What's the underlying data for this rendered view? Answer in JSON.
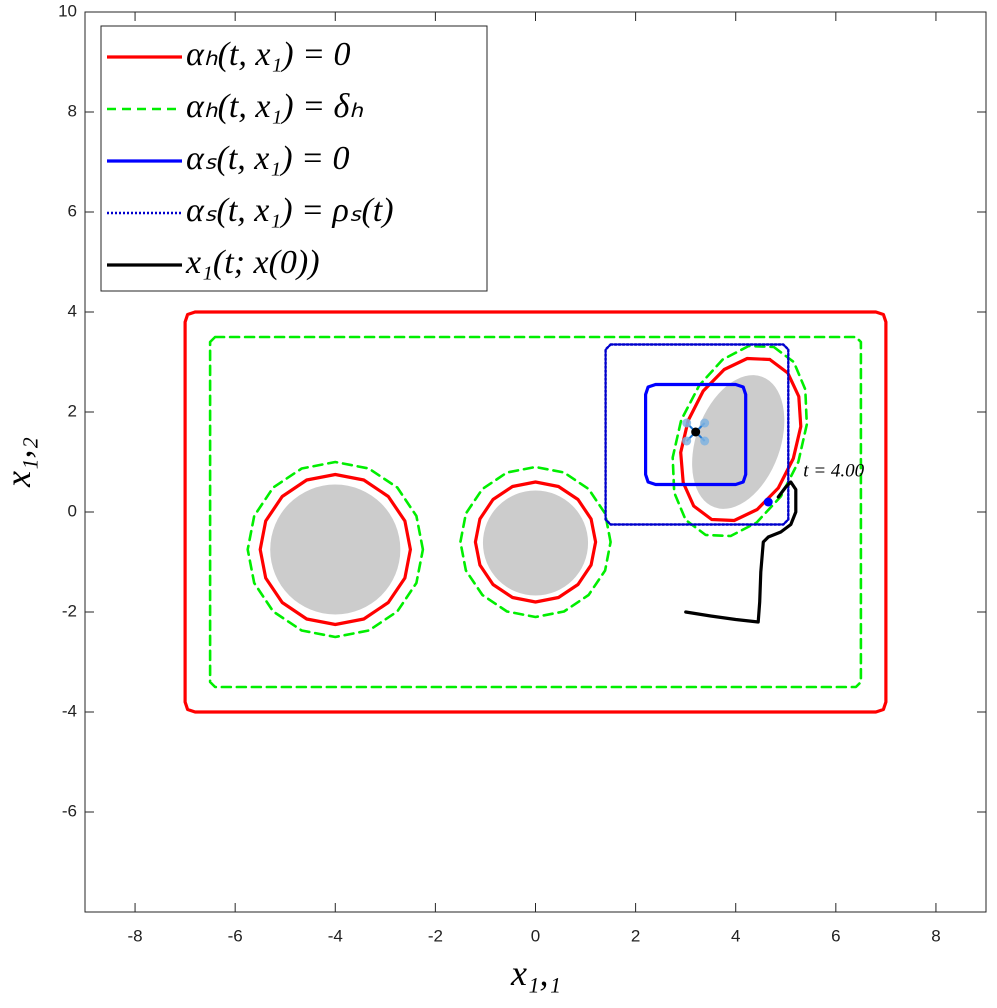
{
  "chart_data": {
    "type": "line",
    "xlabel": "x₁,₁",
    "ylabel": "x₁,₂",
    "xlim": [
      -9,
      9
    ],
    "ylim": [
      -8,
      10
    ],
    "xticks": [
      -8,
      -6,
      -4,
      -2,
      0,
      2,
      4,
      6,
      8
    ],
    "yticks": [
      -6,
      -4,
      -2,
      0,
      2,
      4,
      6,
      8,
      10
    ],
    "legend": "upper left",
    "series": [
      {
        "name": "αₕ(t, x₁) = 0",
        "color": "#ff0000",
        "style": "solid",
        "x": [
          -6.8,
          6.8,
          6.95,
          7,
          7,
          6.95,
          6.8,
          -6.8,
          -6.95,
          -7,
          -7,
          -6.95,
          -6.8,
          null,
          -2.5,
          -2.61,
          -2.94,
          -3.43,
          -4,
          -4.57,
          -5.06,
          -5.39,
          -5.5,
          -5.39,
          -5.06,
          -4.57,
          -4,
          -3.43,
          -2.94,
          -2.61,
          -2.5,
          null,
          1.2,
          1.11,
          0.85,
          0.46,
          0,
          -0.46,
          -0.85,
          -1.11,
          -1.2,
          -1.11,
          -0.85,
          -0.46,
          0,
          0.46,
          0.85,
          1.11,
          1.2,
          null,
          4.68,
          5.04,
          5.26,
          5.3,
          5.15,
          4.85,
          4.43,
          3.97,
          3.52,
          3.16,
          2.95,
          2.9,
          3.05,
          3.35,
          3.77,
          4.23,
          4.68
        ],
        "y": [
          4,
          4,
          3.95,
          3.8,
          -3.8,
          -3.95,
          -4,
          -4,
          -3.95,
          -3.8,
          3.8,
          3.95,
          4,
          null,
          -0.75,
          -0.18,
          0.31,
          0.64,
          0.75,
          0.64,
          0.31,
          -0.18,
          -0.75,
          -1.32,
          -1.81,
          -2.14,
          -2.25,
          -2.14,
          -1.81,
          -1.32,
          -0.75,
          null,
          -0.6,
          -0.14,
          0.25,
          0.51,
          0.6,
          0.51,
          0.25,
          -0.14,
          -0.6,
          -1.06,
          -1.45,
          -1.71,
          -1.8,
          -1.71,
          -1.45,
          -1.06,
          -0.6,
          null,
          3.05,
          2.78,
          2.31,
          1.71,
          1.07,
          0.48,
          0.05,
          -0.17,
          -0.15,
          0.12,
          0.59,
          1.19,
          1.83,
          2.42,
          2.85,
          3.07,
          3.05
        ]
      },
      {
        "name": "αₕ(t, x₁) = δₕ",
        "color": "#00ee00",
        "style": "dashed",
        "x": [
          -6.4,
          6.4,
          6.5,
          6.5,
          6.4,
          -6.4,
          -6.5,
          -6.5,
          -6.4,
          null,
          -2.25,
          -2.38,
          -2.76,
          -3.33,
          -4,
          -4.67,
          -5.24,
          -5.62,
          -5.75,
          -5.62,
          -5.24,
          -4.67,
          -4,
          -3.33,
          -2.76,
          -2.38,
          -2.25,
          null,
          1.5,
          1.39,
          1.06,
          0.57,
          0,
          -0.57,
          -1.06,
          -1.39,
          -1.5,
          -1.39,
          -1.06,
          -0.57,
          0,
          0.57,
          1.06,
          1.39,
          1.5,
          null,
          4.76,
          5.16,
          5.39,
          5.42,
          5.25,
          4.9,
          4.42,
          3.9,
          3.4,
          3.0,
          2.77,
          2.74,
          2.91,
          3.27,
          3.74,
          4.26,
          4.76
        ],
        "y": [
          3.5,
          3.5,
          3.4,
          -3.4,
          -3.5,
          -3.5,
          -3.4,
          3.4,
          3.5,
          null,
          -0.75,
          -0.08,
          0.49,
          0.87,
          1,
          0.87,
          0.49,
          -0.08,
          -0.75,
          -1.42,
          -1.99,
          -2.37,
          -2.5,
          -2.37,
          -1.99,
          -1.42,
          -0.75,
          null,
          -0.6,
          -0.03,
          0.46,
          0.79,
          0.9,
          0.79,
          0.46,
          -0.03,
          -0.6,
          -1.17,
          -1.66,
          -1.99,
          -2.1,
          -1.99,
          -1.66,
          -1.17,
          -0.6,
          null,
          3.3,
          3.0,
          2.45,
          1.75,
          1.0,
          0.31,
          -0.21,
          -0.48,
          -0.46,
          -0.16,
          0.39,
          1.09,
          1.84,
          2.53,
          3.05,
          3.32,
          3.3
        ]
      },
      {
        "name": "αₛ(t, x₁) = 0",
        "color": "#0000ff",
        "style": "solid",
        "x": [
          2.4,
          4.0,
          4.15,
          4.2,
          4.2,
          4.15,
          4.0,
          2.4,
          2.25,
          2.2,
          2.2,
          2.25,
          2.4
        ],
        "y": [
          2.55,
          2.55,
          2.5,
          2.35,
          0.75,
          0.6,
          0.55,
          0.55,
          0.6,
          0.75,
          2.35,
          2.5,
          2.55
        ]
      },
      {
        "name": "αₛ(t, x₁) = ρₛ(t)",
        "color": "#0000cc",
        "style": "dotted",
        "x": [
          1.5,
          4.95,
          5.05,
          5.05,
          4.95,
          1.5,
          1.4,
          1.4,
          1.5
        ],
        "y": [
          3.35,
          3.35,
          3.25,
          -0.15,
          -0.25,
          -0.25,
          -0.15,
          3.25,
          3.35
        ]
      },
      {
        "name": "x₁(t; x(0))",
        "color": "#000000",
        "style": "solid",
        "x": [
          3.0,
          3.5,
          4.0,
          4.45,
          4.48,
          4.5,
          4.55,
          4.65,
          4.9,
          5.1,
          5.2,
          5.2,
          5.1,
          5.0,
          4.85
        ],
        "y": [
          -2.0,
          -2.08,
          -2.15,
          -2.2,
          -1.8,
          -1.2,
          -0.6,
          -0.5,
          -0.4,
          -0.25,
          0.0,
          0.45,
          0.6,
          0.5,
          0.3
        ]
      }
    ],
    "obstacles": [
      {
        "x": -4,
        "y": -0.75,
        "rx": 1.3,
        "ry": 1.3,
        "angle": 0
      },
      {
        "x": 0,
        "y": -0.62,
        "rx": 1.05,
        "ry": 1.05,
        "angle": 0
      },
      {
        "x": 4.05,
        "y": 1.4,
        "rx": 0.84,
        "ry": 1.39,
        "angle": 20
      }
    ],
    "obstacle_color": "#cccccc",
    "markers": [
      {
        "x": 3.2,
        "y": 1.6,
        "color": "#000000"
      },
      {
        "x": 4.65,
        "y": 0.2,
        "color": "#0000ff"
      }
    ],
    "annotations": [
      {
        "text": "t = 4.00",
        "x": 5.35,
        "y": 0.8
      }
    ]
  }
}
